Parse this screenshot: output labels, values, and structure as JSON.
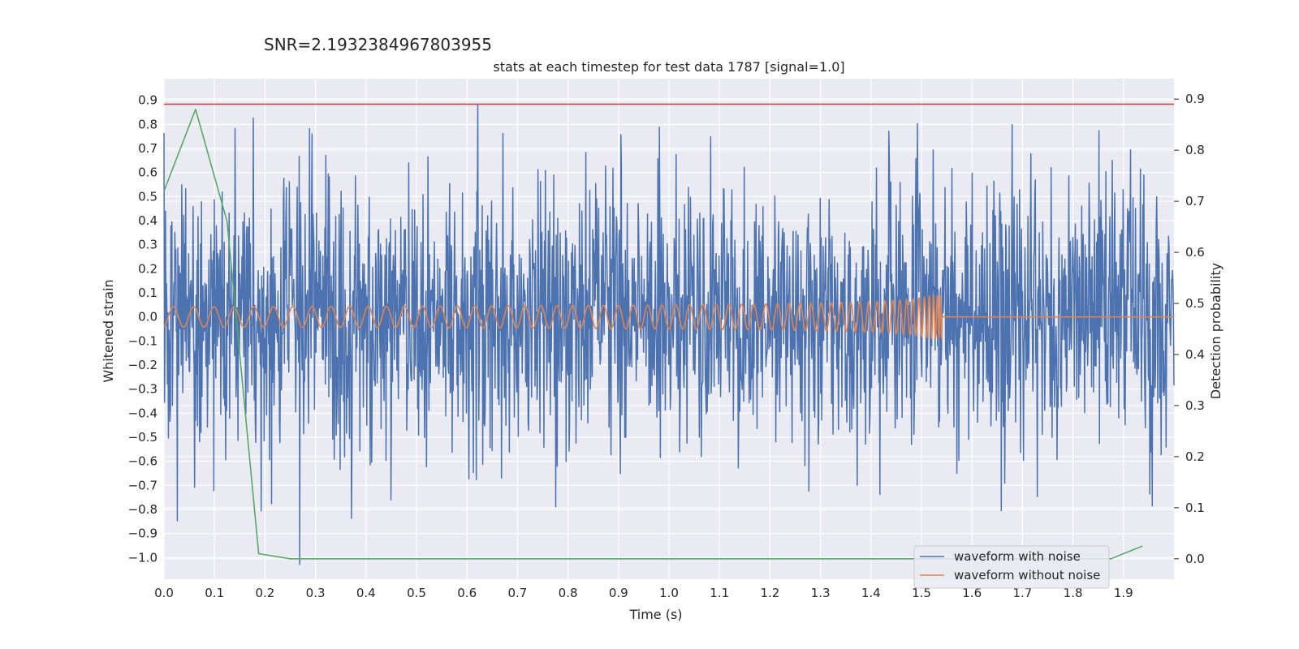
{
  "chart_data": {
    "type": "line",
    "suptitle": "SNR=2.1932384967803955",
    "title": "stats at each timestep for test data 1787 [signal=1.0]",
    "xlabel": "Time (s)",
    "ylabel": "Whitened strain",
    "y2label": "Detection probability",
    "xlim": [
      0.0,
      2.0
    ],
    "ylim": [
      -1.09,
      0.99
    ],
    "y2lim": [
      -0.04,
      0.94
    ],
    "xticks": [
      "0.0",
      "0.1",
      "0.2",
      "0.3",
      "0.4",
      "0.5",
      "0.6",
      "0.7",
      "0.8",
      "0.9",
      "1.0",
      "1.1",
      "1.2",
      "1.3",
      "1.4",
      "1.5",
      "1.6",
      "1.7",
      "1.8",
      "1.9"
    ],
    "yticks": [
      "0.9",
      "0.8",
      "0.7",
      "0.6",
      "0.5",
      "0.4",
      "0.3",
      "0.2",
      "0.1",
      "0.0",
      "−0.1",
      "−0.2",
      "−0.3",
      "−0.4",
      "−0.5",
      "−0.6",
      "−0.7",
      "−0.8",
      "−0.9",
      "−1.0"
    ],
    "y2ticks": [
      "0.9",
      "0.8",
      "0.7",
      "0.6",
      "0.5",
      "0.4",
      "0.3",
      "0.2",
      "0.1",
      "0.0"
    ],
    "threshold": 0.89,
    "series": [
      {
        "name": "waveform with noise",
        "color": "#4c72b0",
        "axis": "left",
        "kind": "noise",
        "amplitude": 0.28,
        "x_range": [
          0.0,
          2.0
        ],
        "samples": 2048
      },
      {
        "name": "waveform without noise",
        "color": "#dd8452",
        "axis": "left",
        "kind": "chirp",
        "amplitude_start": 0.015,
        "amplitude_end": 0.09,
        "t_merge": 1.54,
        "x_range": [
          0.0,
          2.0
        ]
      },
      {
        "name": "detection probability",
        "color": "#55a868",
        "axis": "right",
        "x": [
          0.0,
          0.0625,
          0.125,
          0.1875,
          0.25,
          0.3125,
          0.375,
          0.4375,
          0.5,
          0.5625,
          0.625,
          0.6875,
          0.75,
          0.8125,
          0.875,
          0.9375,
          1.0,
          1.0625,
          1.125,
          1.1875,
          1.25,
          1.3125,
          1.375,
          1.4375,
          1.5,
          1.5625,
          1.625,
          1.6875,
          1.75,
          1.8125,
          1.875,
          1.9375
        ],
        "y": [
          0.72,
          0.88,
          0.66,
          0.01,
          0.0,
          0.0,
          0.0,
          0.0,
          0.0,
          0.0,
          0.0,
          0.0,
          0.0,
          0.0,
          0.0,
          0.0,
          0.0,
          0.0,
          0.0,
          0.0,
          0.0,
          0.0,
          0.0,
          0.0,
          0.0,
          0.0,
          0.0,
          0.0,
          0.0,
          0.0,
          0.0,
          0.025
        ]
      }
    ],
    "legend": {
      "position": "lower-right",
      "entries": [
        "waveform with noise",
        "waveform without noise"
      ]
    },
    "threshold_color": "#c44e52",
    "grid": true,
    "background": "#eaeaf2"
  }
}
